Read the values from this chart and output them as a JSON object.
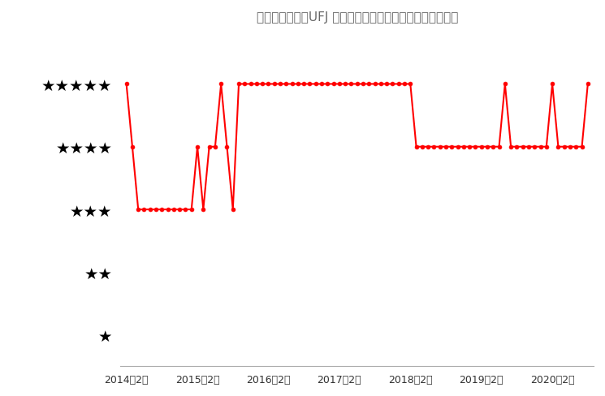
{
  "title": "（図表）「三菱UFJ 純金ファンド」のレーティングの推移",
  "line_color": "#FF0000",
  "dot_color": "#FF0000",
  "background_color": "#FFFFFF",
  "ytick_labels": [
    "★",
    "★★",
    "★★★",
    "★★★★",
    "★★★★★"
  ],
  "ytick_values": [
    1,
    2,
    3,
    4,
    5
  ],
  "xtick_labels": [
    "2014年2月",
    "2015年2月",
    "2016年2月",
    "2017年2月",
    "2018年2月",
    "2019年2月",
    "2020年2月"
  ],
  "xtick_positions": [
    0,
    12,
    24,
    36,
    48,
    60,
    72
  ],
  "xlim": [
    -1,
    79
  ],
  "ylim": [
    0.5,
    5.8
  ],
  "series": {
    "months": [
      0,
      1,
      2,
      3,
      4,
      5,
      6,
      7,
      8,
      9,
      10,
      11,
      12,
      13,
      14,
      15,
      16,
      17,
      18,
      19,
      20,
      21,
      22,
      23,
      24,
      25,
      26,
      27,
      28,
      29,
      30,
      31,
      32,
      33,
      34,
      35,
      36,
      37,
      38,
      39,
      40,
      41,
      42,
      43,
      44,
      45,
      46,
      47,
      48,
      49,
      50,
      51,
      52,
      53,
      54,
      55,
      56,
      57,
      58,
      59,
      60,
      61,
      62,
      63,
      64,
      65,
      66,
      67,
      68,
      69,
      70,
      71,
      72,
      73,
      74,
      75,
      76,
      77,
      78
    ],
    "ratings": [
      5,
      4,
      3,
      3,
      3,
      3,
      3,
      3,
      3,
      3,
      3,
      3,
      4,
      3,
      4,
      4,
      5,
      4,
      3,
      5,
      5,
      5,
      5,
      5,
      5,
      5,
      5,
      5,
      5,
      5,
      5,
      5,
      5,
      5,
      5,
      5,
      5,
      5,
      5,
      5,
      5,
      5,
      5,
      5,
      5,
      5,
      5,
      5,
      5,
      4,
      4,
      4,
      4,
      4,
      4,
      4,
      4,
      4,
      4,
      4,
      4,
      4,
      4,
      4,
      5,
      4,
      4,
      4,
      4,
      4,
      4,
      4,
      5,
      4,
      4,
      4,
      4,
      4,
      5
    ]
  }
}
